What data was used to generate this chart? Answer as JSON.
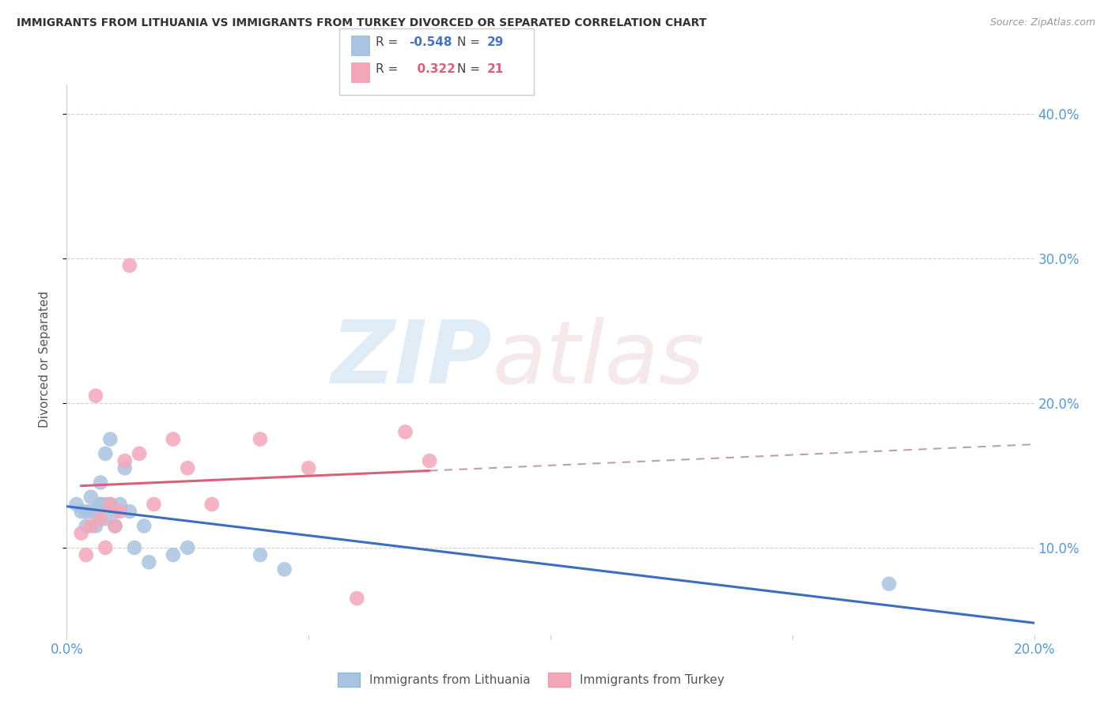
{
  "title": "IMMIGRANTS FROM LITHUANIA VS IMMIGRANTS FROM TURKEY DIVORCED OR SEPARATED CORRELATION CHART",
  "source": "Source: ZipAtlas.com",
  "ylabel": "Divorced or Separated",
  "legend_label1": "Immigrants from Lithuania",
  "legend_label2": "Immigrants from Turkey",
  "R_lithuania": -0.548,
  "N_lithuania": 29,
  "R_turkey": 0.322,
  "N_turkey": 21,
  "xlim": [
    0.0,
    0.2
  ],
  "ylim": [
    0.04,
    0.42
  ],
  "yticks": [
    0.1,
    0.2,
    0.3,
    0.4
  ],
  "ytick_labels": [
    "10.0%",
    "20.0%",
    "30.0%",
    "40.0%"
  ],
  "xticks": [
    0.0,
    0.05,
    0.1,
    0.15,
    0.2
  ],
  "xtick_labels": [
    "0.0%",
    "",
    "",
    "",
    "20.0%"
  ],
  "color_lithuania": "#a8c4e0",
  "color_turkey": "#f4a7b9",
  "line_color_lithuania": "#3b6fbe",
  "line_color_turkey": "#d9607a",
  "line_color_turkey_dash": "#c0a0a8",
  "background_color": "#ffffff",
  "lithuania_x": [
    0.002,
    0.003,
    0.004,
    0.004,
    0.005,
    0.005,
    0.006,
    0.006,
    0.007,
    0.007,
    0.007,
    0.008,
    0.008,
    0.008,
    0.009,
    0.009,
    0.01,
    0.01,
    0.011,
    0.012,
    0.013,
    0.014,
    0.016,
    0.017,
    0.022,
    0.025,
    0.04,
    0.045,
    0.17
  ],
  "lithuania_y": [
    0.13,
    0.125,
    0.125,
    0.115,
    0.135,
    0.125,
    0.125,
    0.115,
    0.13,
    0.13,
    0.145,
    0.13,
    0.165,
    0.12,
    0.13,
    0.175,
    0.125,
    0.115,
    0.13,
    0.155,
    0.125,
    0.1,
    0.115,
    0.09,
    0.095,
    0.1,
    0.095,
    0.085,
    0.075
  ],
  "turkey_x": [
    0.003,
    0.004,
    0.005,
    0.006,
    0.007,
    0.008,
    0.009,
    0.01,
    0.011,
    0.012,
    0.013,
    0.015,
    0.018,
    0.022,
    0.025,
    0.03,
    0.04,
    0.05,
    0.06,
    0.07,
    0.075
  ],
  "turkey_y": [
    0.11,
    0.095,
    0.115,
    0.205,
    0.12,
    0.1,
    0.13,
    0.115,
    0.125,
    0.16,
    0.295,
    0.165,
    0.13,
    0.175,
    0.155,
    0.13,
    0.175,
    0.155,
    0.065,
    0.18,
    0.16
  ]
}
